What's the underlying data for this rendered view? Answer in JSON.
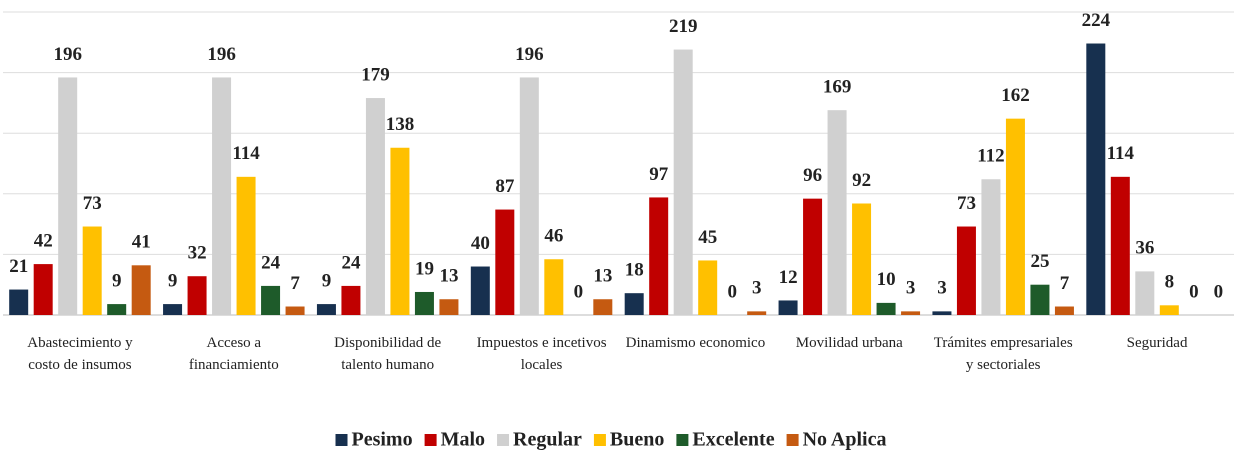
{
  "chart_data": {
    "type": "bar",
    "categories": [
      "Abastecimiento y costo de insumos",
      "Acceso a financiamiento",
      "Disponibilidad de talento humano",
      "Impuestos e incetivos locales",
      "Dinamismo economico",
      "Movilidad urbana",
      "Trámites empresariales y sectoriales",
      "Seguridad"
    ],
    "series": [
      {
        "name": "Pesimo",
        "color": "#17304f",
        "values": [
          21,
          9,
          9,
          40,
          18,
          12,
          3,
          224
        ]
      },
      {
        "name": "Malo",
        "color": "#c00000",
        "values": [
          42,
          32,
          24,
          87,
          97,
          96,
          73,
          114
        ]
      },
      {
        "name": "Regular",
        "color": "#d0d0d0",
        "values": [
          196,
          196,
          179,
          196,
          219,
          169,
          112,
          36
        ]
      },
      {
        "name": "Bueno",
        "color": "#ffc000",
        "values": [
          73,
          114,
          138,
          46,
          45,
          92,
          162,
          8
        ]
      },
      {
        "name": "Excelente",
        "color": "#1e5b2a",
        "values": [
          9,
          24,
          19,
          0,
          0,
          10,
          25,
          0
        ]
      },
      {
        "name": "No Aplica",
        "color": "#c55a11",
        "values": [
          41,
          7,
          13,
          13,
          3,
          3,
          7,
          0
        ]
      }
    ],
    "ylim": [
      0,
      250
    ],
    "yticks": [
      0,
      50,
      100,
      150,
      200,
      250
    ],
    "grid": true,
    "legend": "bottom"
  }
}
